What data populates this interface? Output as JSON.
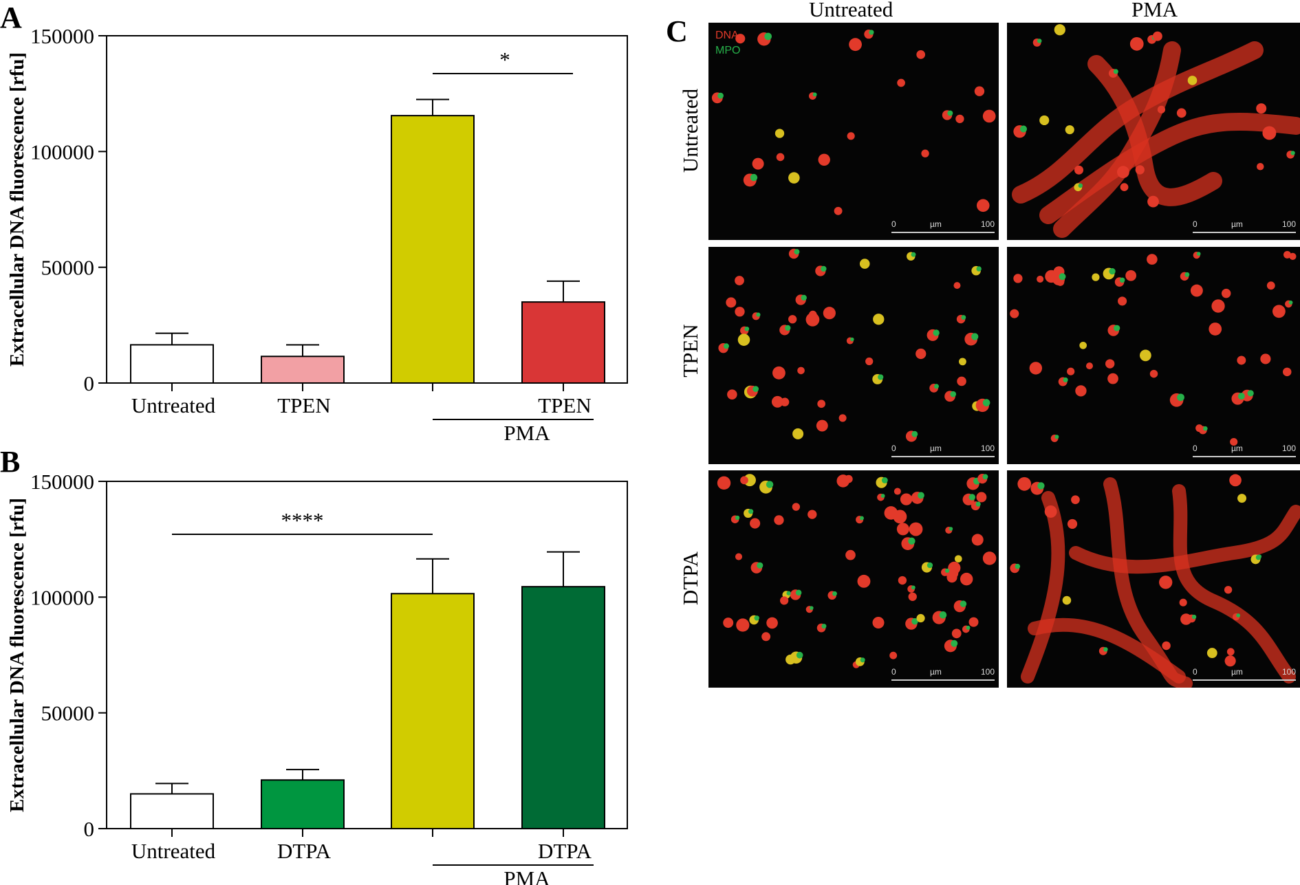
{
  "chart_data": [
    {
      "panel": "A",
      "type": "bar",
      "ylabel": "Extracellular DNA fluorescence [rfu]",
      "ylim": [
        0,
        150000
      ],
      "yticks": [
        "0",
        "50000",
        "100000",
        "150000"
      ],
      "categories": [
        "Untreated",
        "TPEN",
        "",
        "TPEN"
      ],
      "group_label": "PMA",
      "values": [
        16500,
        11500,
        115500,
        35000
      ],
      "errors": [
        5000,
        5000,
        7000,
        9000
      ],
      "colors": [
        "#ffffff",
        "#f2a0a4",
        "#d1cc00",
        "#d93636"
      ],
      "significance": [
        {
          "from": 2,
          "to": 3,
          "label": "*"
        }
      ]
    },
    {
      "panel": "B",
      "type": "bar",
      "ylabel": "Extracellular DNA fluorescence [rfu]",
      "ylim": [
        0,
        150000
      ],
      "yticks": [
        "0",
        "50000",
        "100000",
        "150000"
      ],
      "categories": [
        "Untreated",
        "DTPA",
        "",
        "DTPA"
      ],
      "group_label": "PMA",
      "values": [
        15000,
        21000,
        101500,
        104500
      ],
      "errors": [
        4500,
        4500,
        15000,
        15000
      ],
      "colors": [
        "#ffffff",
        "#009640",
        "#d1cc00",
        "#006b35"
      ],
      "significance": [
        {
          "from": 0,
          "to": 2,
          "label": "****"
        }
      ]
    }
  ],
  "panelC": {
    "letter": "C",
    "columns": [
      "Untreated",
      "PMA"
    ],
    "rows": [
      "Untreated",
      "TPEN",
      "DTPA"
    ],
    "legend": {
      "dna": "DNA",
      "mpo": "MPO"
    },
    "scale": {
      "start": "0",
      "unit": "µm",
      "end": "100"
    }
  },
  "colors": {
    "dna": "#e23a2a",
    "mpo": "#27b14a",
    "net": "#d8321f"
  }
}
